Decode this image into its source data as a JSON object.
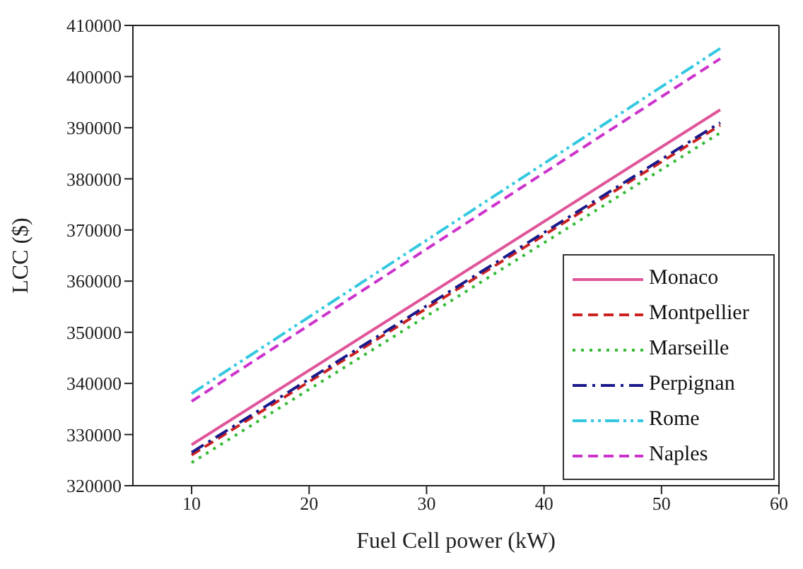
{
  "chart_data": {
    "type": "line",
    "xlabel": "Fuel Cell power (kW)",
    "ylabel": "LCC ($)",
    "x": [
      10,
      55
    ],
    "xlim": [
      5,
      60
    ],
    "xticks": [
      10,
      20,
      30,
      40,
      50,
      60
    ],
    "ylim": [
      320000,
      410000
    ],
    "yticks": [
      320000,
      330000,
      340000,
      350000,
      360000,
      370000,
      380000,
      390000,
      400000,
      410000
    ],
    "legend": "bottom right",
    "grid": false,
    "marker": "none",
    "series": [
      {
        "name": "Monaco",
        "color": "#e0559a",
        "line_style": "solid",
        "values": [
          328000,
          393500
        ]
      },
      {
        "name": "Montpellier",
        "color": "#cc2222",
        "line_style": "dashed",
        "values": [
          326000,
          390500
        ]
      },
      {
        "name": "Marseille",
        "color": "#33bb33",
        "line_style": "dotted",
        "values": [
          324500,
          389000
        ]
      },
      {
        "name": "Perpignan",
        "color": "#1a1a8c",
        "line_style": "dashdot",
        "values": [
          326500,
          391000
        ]
      },
      {
        "name": "Rome",
        "color": "#33c8e0",
        "line_style": "dashdotdot",
        "values": [
          338000,
          405500
        ]
      },
      {
        "name": "Naples",
        "color": "#cc33cc",
        "line_style": "dashed",
        "values": [
          336500,
          403500
        ]
      }
    ]
  }
}
